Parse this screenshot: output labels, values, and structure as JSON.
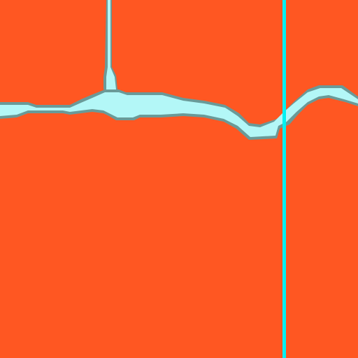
{
  "colors": {
    "background": "#ff5722",
    "path_fill": "#b3f7f7",
    "path_edge": "#6a9a98",
    "cursor_line": "#00f2f2"
  }
}
